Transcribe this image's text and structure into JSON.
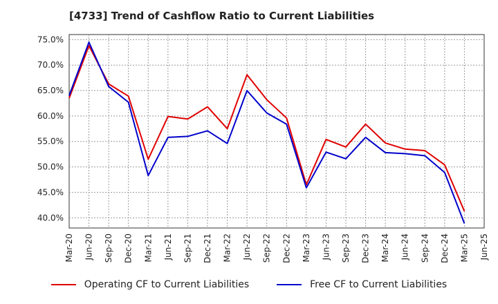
{
  "chart_data": {
    "type": "line",
    "title": "[4733]  Trend of Cashflow Ratio to Current Liabilities",
    "categories": [
      "Mar-20",
      "Jun-20",
      "Sep-20",
      "Dec-20",
      "Mar-21",
      "Jun-21",
      "Sep-21",
      "Dec-21",
      "Mar-22",
      "Jun-22",
      "Sep-22",
      "Dec-22",
      "Mar-23",
      "Jun-23",
      "Sep-23",
      "Dec-23",
      "Mar-24",
      "Jun-24",
      "Sep-24",
      "Dec-24",
      "Mar-25",
      "Jun-25"
    ],
    "y_ticks": [
      "40.0%",
      "45.0%",
      "50.0%",
      "55.0%",
      "60.0%",
      "65.0%",
      "70.0%",
      "75.0%"
    ],
    "ylim": [
      38,
      76
    ],
    "series": [
      {
        "name": "Operating CF to Current Liabilities",
        "color": "#e00000",
        "values": [
          63.5,
          73.8,
          66.3,
          63.9,
          51.5,
          59.9,
          59.4,
          61.8,
          57.5,
          68.1,
          63.2,
          59.6,
          46.5,
          55.4,
          53.9,
          58.4,
          54.7,
          53.5,
          53.2,
          50.4,
          41.3,
          null
        ]
      },
      {
        "name": "Free CF to Current Liabilities",
        "color": "#0000cc",
        "values": [
          64.0,
          74.5,
          65.8,
          62.7,
          48.3,
          55.8,
          56.0,
          57.1,
          54.6,
          65.0,
          60.6,
          58.4,
          45.9,
          52.9,
          51.6,
          55.8,
          52.8,
          52.6,
          52.2,
          48.9,
          38.9,
          null
        ]
      }
    ],
    "grid": true,
    "legend_position": "bottom"
  }
}
